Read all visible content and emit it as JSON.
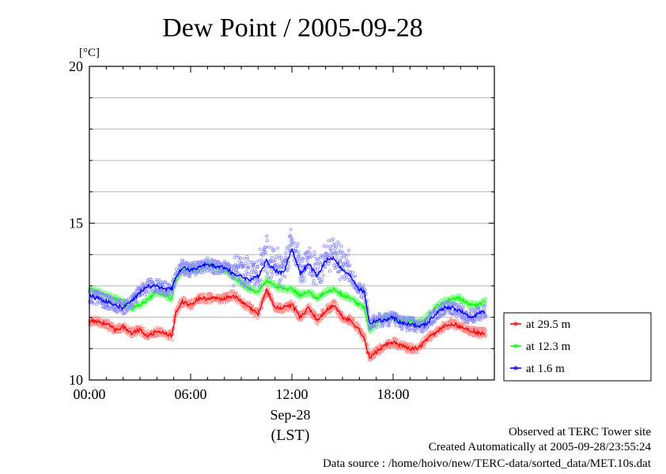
{
  "chart_data": {
    "type": "line",
    "title": "Dew Point / 2005-09-28",
    "ylabel": "[°C]",
    "ylim": [
      10,
      20
    ],
    "yticks": [
      "10",
      "15",
      "20"
    ],
    "xlim": [
      0,
      24
    ],
    "xticks": [
      "00:00",
      "06:00",
      "12:00",
      "18:00"
    ],
    "xticks_hours": [
      0,
      6,
      12,
      18
    ],
    "x_date_label": "Sep-28",
    "x_unit_label": "(LST)",
    "grid": true,
    "legend_position": "right",
    "series": [
      {
        "name": "at 29.5 m",
        "color": "#ff0000",
        "x": [
          0,
          0.5,
          1,
          1.5,
          2,
          2.5,
          3,
          3.5,
          4,
          4.5,
          4.9,
          5.1,
          5.5,
          6,
          6.5,
          7,
          7.5,
          8,
          8.5,
          9,
          9.5,
          10,
          10.5,
          11,
          11.5,
          12,
          12.5,
          13,
          13.5,
          14,
          14.5,
          15,
          15.5,
          16,
          16.3,
          16.6,
          17,
          17.5,
          18,
          18.5,
          19,
          19.5,
          20,
          20.5,
          21,
          21.5,
          22,
          22.5,
          23,
          23.5
        ],
        "y": [
          11.9,
          11.85,
          11.8,
          11.6,
          11.7,
          11.5,
          11.6,
          11.4,
          11.55,
          11.5,
          11.4,
          12.1,
          12.5,
          12.4,
          12.6,
          12.6,
          12.6,
          12.6,
          12.7,
          12.5,
          12.3,
          12.1,
          12.9,
          12.3,
          12.3,
          12.4,
          12.0,
          12.3,
          11.9,
          12.2,
          12.4,
          12.0,
          11.9,
          11.6,
          11.3,
          10.7,
          10.9,
          11.1,
          11.2,
          11.1,
          11.0,
          11.0,
          11.3,
          11.5,
          11.7,
          11.8,
          11.7,
          11.6,
          11.5,
          11.5
        ]
      },
      {
        "name": "at 12.3 m",
        "color": "#00ff00",
        "x": [
          0,
          0.5,
          1,
          1.5,
          2,
          2.5,
          3,
          3.5,
          4,
          4.5,
          4.9,
          5.1,
          5.5,
          6,
          6.5,
          7,
          7.5,
          8,
          8.5,
          9,
          9.5,
          10,
          10.5,
          11,
          11.5,
          12,
          12.5,
          13,
          13.5,
          14,
          14.5,
          15,
          15.5,
          16,
          16.3,
          16.6,
          17,
          17.5,
          18,
          18.5,
          19,
          19.5,
          20,
          20.5,
          21,
          21.5,
          22,
          22.5,
          23,
          23.5
        ],
        "y": [
          12.9,
          12.8,
          12.7,
          12.6,
          12.5,
          12.3,
          12.4,
          12.6,
          12.8,
          12.7,
          12.6,
          13.2,
          13.5,
          13.6,
          13.5,
          13.7,
          13.6,
          13.5,
          13.3,
          13.1,
          12.9,
          12.8,
          13.2,
          13.0,
          12.9,
          12.9,
          12.7,
          12.8,
          12.6,
          12.8,
          12.9,
          12.7,
          12.6,
          12.4,
          12.3,
          11.6,
          11.8,
          12.0,
          12.0,
          11.9,
          11.9,
          11.8,
          12.0,
          12.3,
          12.5,
          12.6,
          12.6,
          12.4,
          12.4,
          12.5
        ]
      },
      {
        "name": "at 1.6 m",
        "color": "#0000ff",
        "x": [
          0,
          0.5,
          1,
          1.5,
          2,
          2.5,
          3,
          3.5,
          4,
          4.5,
          4.9,
          5.1,
          5.5,
          6,
          6.5,
          7,
          7.5,
          8,
          8.5,
          9,
          9.5,
          10,
          10.5,
          11,
          11.5,
          12,
          12.5,
          13,
          13.5,
          14,
          14.5,
          15,
          15.5,
          16,
          16.3,
          16.6,
          17,
          17.5,
          18,
          18.5,
          19,
          19.5,
          20,
          20.5,
          21,
          21.5,
          22,
          22.5,
          23,
          23.5
        ],
        "y": [
          12.7,
          12.6,
          12.5,
          12.4,
          12.3,
          12.5,
          12.8,
          13.0,
          13.0,
          12.9,
          12.9,
          13.3,
          13.6,
          13.5,
          13.6,
          13.7,
          13.6,
          13.6,
          13.4,
          13.3,
          13.2,
          13.3,
          13.8,
          13.5,
          13.4,
          14.2,
          13.4,
          13.7,
          13.3,
          13.8,
          13.9,
          13.5,
          13.3,
          12.9,
          12.8,
          11.8,
          11.9,
          11.9,
          12.0,
          11.8,
          11.8,
          11.7,
          11.8,
          12.1,
          12.3,
          12.3,
          12.2,
          12.0,
          12.1,
          12.2
        ]
      }
    ]
  },
  "footer": {
    "line1": "Observed at TERC Tower site",
    "line2": "Created Automatically at 2005-09-28/23:55:24",
    "line3": "Data source : /home/hoivo/new/TERC-data/sorted_data/MET.10s.dat"
  }
}
